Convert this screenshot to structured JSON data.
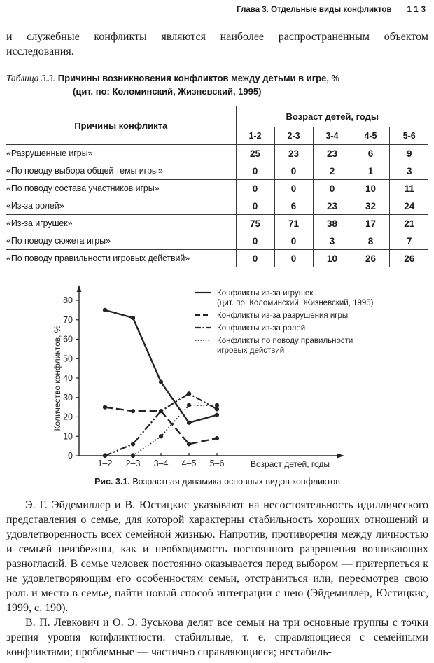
{
  "colors": {
    "ink": "#242424",
    "rule": "#3a3a3a",
    "text": "#1b1b1b",
    "background": "#ffffff"
  },
  "header": {
    "chapter_title": "Глава 3. Отдельные виды конфликтов",
    "page_number": "113"
  },
  "paragraphs": {
    "intro": "и служебные конфликты являются наиболее распространенным объектом исследования.",
    "eidemiller": "Э. Г. Эйдемиллер и В. Юстицкис указывают на несостоятельность идиллического представления о семье, для которой характерны стабильность хороших отношений и удовлетворенность всех семейной жизнью. Напротив, противоречия между личностью и семьей неизбежны, как и необходимость постоянного разрешения возникающих разногласий. В семье человек постоянно оказывается перед выбором — притерпеться к не удовлетворяющим его особенностям семьи, отстраниться или, пересмотрев свою роль и место в семье, найти новый способ интеграции с нею (Эйдемиллер, Юстицкис, 1999, с. 190).",
    "levkovich": "В. П. Левкович и О. Э. Зуськова делят все семьи на три основные группы с точки зрения уровня конфликтности: стабильные, т. е. справляющиеся с семейными конфликтами; проблемные — частично справляющиеся; нестабиль-"
  },
  "table": {
    "caption_label": "Таблица 3.3.",
    "caption_title": "Причины возникновения конфликтов между детьми в игре, %",
    "caption_subtitle": "(цит. по: Коломинский, Жизневский, 1995)",
    "row_header": "Причины конфликта",
    "col_group_header": "Возраст детей, годы",
    "age_columns": [
      "1-2",
      "2-3",
      "3-4",
      "4-5",
      "5-6"
    ],
    "rows": [
      {
        "label": "«Разрушенные игры»",
        "values": [
          25,
          23,
          23,
          6,
          9
        ]
      },
      {
        "label": "«По поводу выбора общей темы игры»",
        "values": [
          0,
          0,
          2,
          1,
          3
        ]
      },
      {
        "label": "«По поводу состава участников игры»",
        "values": [
          0,
          0,
          0,
          10,
          11
        ]
      },
      {
        "label": "«Из-за ролей»",
        "values": [
          0,
          6,
          23,
          32,
          24
        ]
      },
      {
        "label": "«Из-за игрушек»",
        "values": [
          75,
          71,
          38,
          17,
          21
        ]
      },
      {
        "label": "«По поводу сюжета игры»",
        "values": [
          0,
          0,
          3,
          8,
          7
        ]
      },
      {
        "label": "«По поводу правильности игровых действий»",
        "values": [
          0,
          0,
          10,
          26,
          26
        ]
      }
    ]
  },
  "figure": {
    "caption_label": "Рис. 3.1.",
    "caption_text": "Возрастная динамика основных видов конфликтов"
  },
  "chart_data": {
    "type": "line",
    "categories": [
      "1–2",
      "2–3",
      "3–4",
      "4–5",
      "5–6"
    ],
    "series": [
      {
        "name": "Конфликты из-за игрушек (цит. по: Коломинский, Жизневский, 1995)",
        "legend_lines": [
          "Конфликты из-за игрушек",
          "(цит. по: Коломинский, Жизневский, 1995)"
        ],
        "line_style": "solid",
        "values": [
          75,
          71,
          38,
          17,
          21
        ]
      },
      {
        "name": "Конфликты из-за разрушения игры",
        "legend_lines": [
          "Конфликты из-за разрушения игры"
        ],
        "line_style": "dashed",
        "values": [
          25,
          23,
          23,
          6,
          9
        ]
      },
      {
        "name": "Конфликты из-за ролей",
        "legend_lines": [
          "Конфликты из-за ролей"
        ],
        "line_style": "dashdot",
        "values": [
          0,
          6,
          23,
          32,
          24
        ]
      },
      {
        "name": "Конфликты по поводу правильности игровых действий",
        "legend_lines": [
          "Конфликты по поводу правильности",
          "игровых действий"
        ],
        "line_style": "dotted",
        "values": [
          0,
          0,
          10,
          26,
          26
        ]
      }
    ],
    "xlabel": "Возраст детей, годы",
    "ylabel": "Количество конфликтов, %",
    "ylim": [
      0,
      80
    ],
    "yticks": [
      0,
      10,
      20,
      30,
      40,
      50,
      60,
      70,
      80
    ],
    "grid": false,
    "marker": "circle",
    "legend_position": "top-right"
  }
}
